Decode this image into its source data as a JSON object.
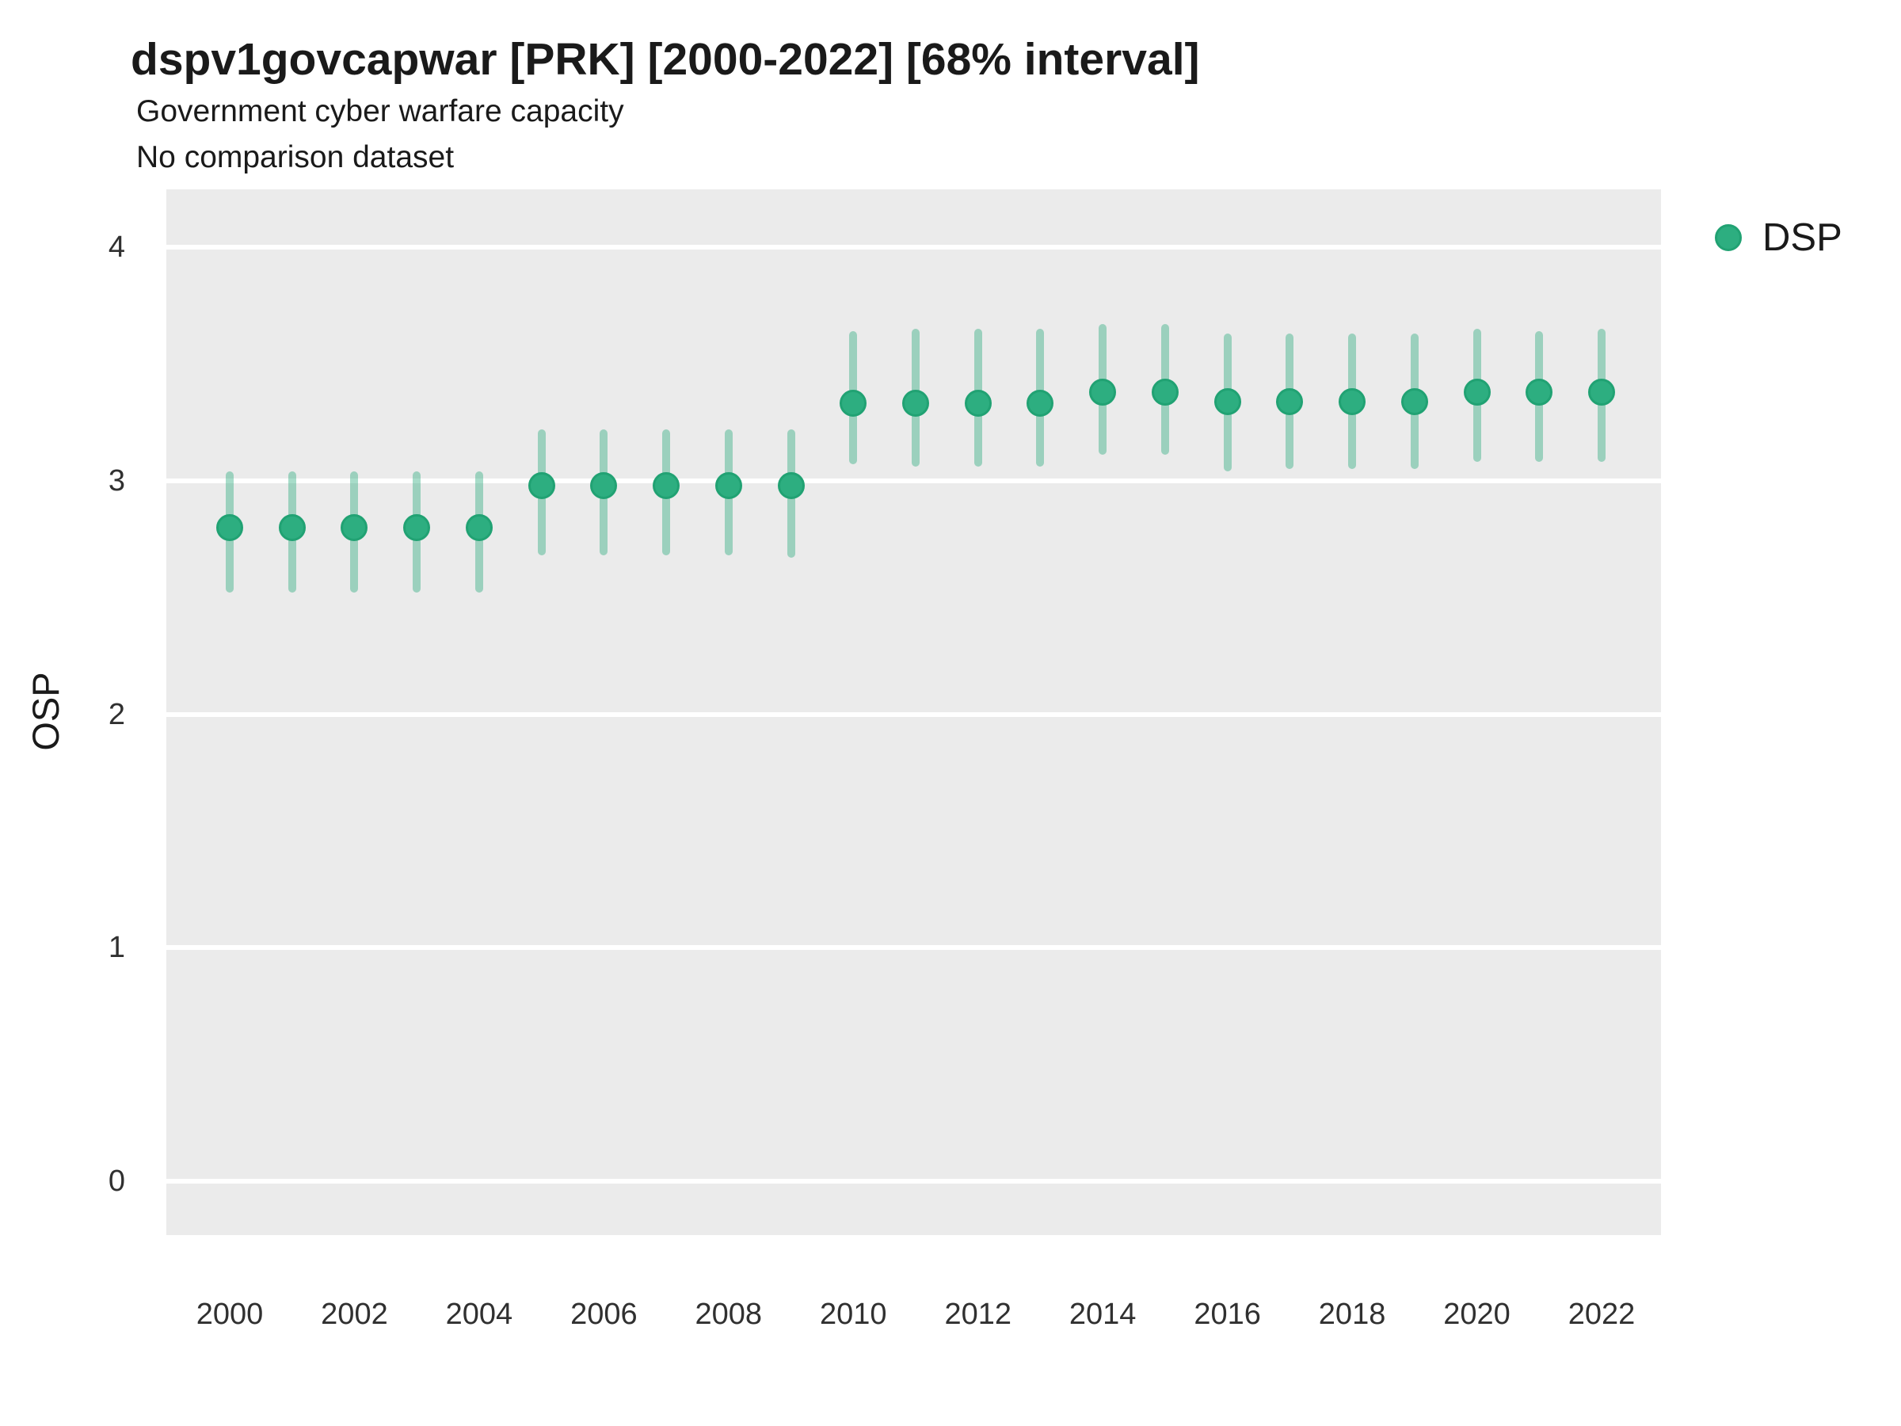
{
  "header": {
    "title": "dspv1govcapwar [PRK] [2000-2022] [68% interval]",
    "subtitle1": "Government cyber warfare capacity",
    "subtitle2": "No comparison dataset"
  },
  "legend": {
    "label": "DSP",
    "position": "right-top",
    "marker_color": "#2dae80"
  },
  "colors": {
    "panel_background": "#EBEBEB",
    "gridline": "#FFFFFF",
    "point_fill": "#2dae80",
    "point_stroke": "#21a273",
    "interval_bar": "rgba(45,172,126,0.42)",
    "text": "#1a1a1a",
    "tick_text": "#303030"
  },
  "chart_data": {
    "type": "scatter",
    "subtype": "pointrange",
    "title": "dspv1govcapwar [PRK] [2000-2022] [68% interval]",
    "xlabel": "",
    "ylabel": "OSP",
    "grid": "on",
    "legend_position": "right",
    "ylim": [
      -0.23,
      4.25
    ],
    "xlim": [
      1999,
      2023
    ],
    "y_ticks": [
      4,
      3,
      2,
      1,
      0
    ],
    "x_ticks": [
      2000,
      2002,
      2004,
      2006,
      2008,
      2010,
      2012,
      2014,
      2016,
      2018,
      2020,
      2022
    ],
    "interval_label": "68% interval",
    "series": [
      {
        "name": "DSP",
        "points": [
          {
            "year": 2000,
            "value": 2.8,
            "low": 2.52,
            "high": 3.04
          },
          {
            "year": 2001,
            "value": 2.8,
            "low": 2.52,
            "high": 3.04
          },
          {
            "year": 2002,
            "value": 2.8,
            "low": 2.52,
            "high": 3.04
          },
          {
            "year": 2003,
            "value": 2.8,
            "low": 2.52,
            "high": 3.04
          },
          {
            "year": 2004,
            "value": 2.8,
            "low": 2.52,
            "high": 3.04
          },
          {
            "year": 2005,
            "value": 2.98,
            "low": 2.68,
            "high": 3.22
          },
          {
            "year": 2006,
            "value": 2.98,
            "low": 2.68,
            "high": 3.22
          },
          {
            "year": 2007,
            "value": 2.98,
            "low": 2.68,
            "high": 3.22
          },
          {
            "year": 2008,
            "value": 2.98,
            "low": 2.68,
            "high": 3.22
          },
          {
            "year": 2009,
            "value": 2.98,
            "low": 2.67,
            "high": 3.22
          },
          {
            "year": 2010,
            "value": 3.33,
            "low": 3.07,
            "high": 3.64
          },
          {
            "year": 2011,
            "value": 3.33,
            "low": 3.06,
            "high": 3.65
          },
          {
            "year": 2012,
            "value": 3.33,
            "low": 3.06,
            "high": 3.65
          },
          {
            "year": 2013,
            "value": 3.33,
            "low": 3.06,
            "high": 3.65
          },
          {
            "year": 2014,
            "value": 3.38,
            "low": 3.11,
            "high": 3.67
          },
          {
            "year": 2015,
            "value": 3.38,
            "low": 3.11,
            "high": 3.67
          },
          {
            "year": 2016,
            "value": 3.34,
            "low": 3.04,
            "high": 3.63
          },
          {
            "year": 2017,
            "value": 3.34,
            "low": 3.05,
            "high": 3.63
          },
          {
            "year": 2018,
            "value": 3.34,
            "low": 3.05,
            "high": 3.63
          },
          {
            "year": 2019,
            "value": 3.34,
            "low": 3.05,
            "high": 3.63
          },
          {
            "year": 2020,
            "value": 3.38,
            "low": 3.08,
            "high": 3.65
          },
          {
            "year": 2021,
            "value": 3.38,
            "low": 3.08,
            "high": 3.64
          },
          {
            "year": 2022,
            "value": 3.38,
            "low": 3.08,
            "high": 3.65
          }
        ]
      }
    ]
  }
}
